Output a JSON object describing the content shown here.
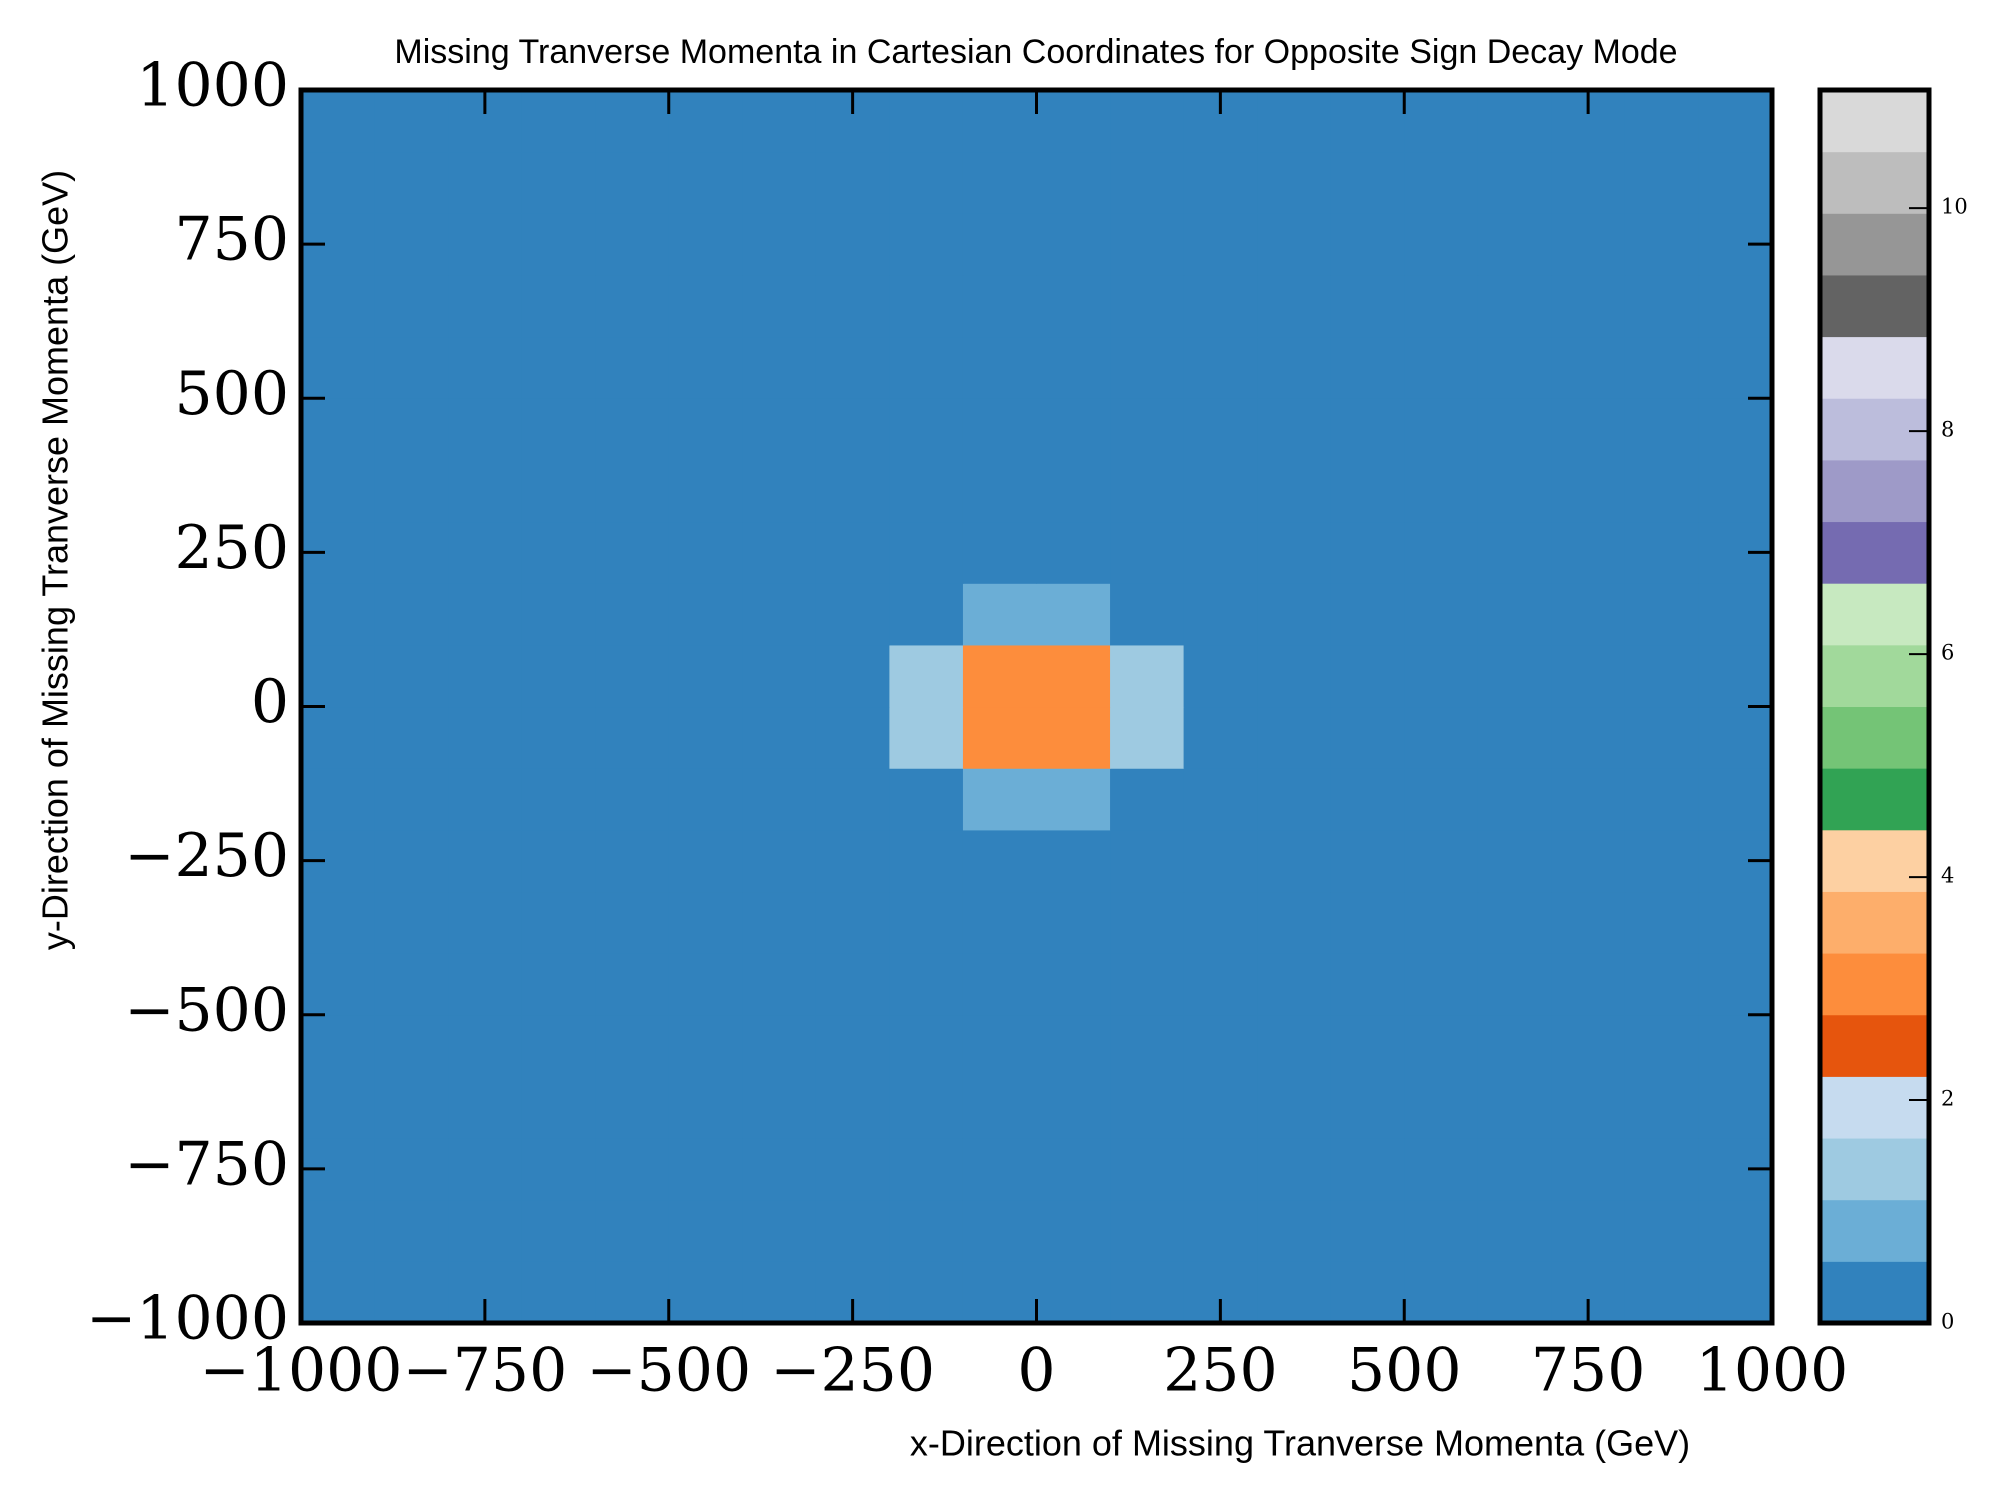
{
  "chart_data": {
    "type": "heatmap",
    "title": "Missing Tranverse Momenta in Cartesian Coordinates for Opposite Sign Decay Mode",
    "x_label": "x-Direction of Missing Tranverse Momenta (GeV)",
    "y_label": "y-Direction of Missing Tranverse Momenta (GeV)",
    "x_bins": [
      -1000,
      -900,
      -800,
      -700,
      -600,
      -500,
      -400,
      -300,
      -200,
      -100,
      0,
      100,
      200,
      300,
      400,
      500,
      600,
      700,
      800,
      900,
      1000
    ],
    "y_bins": [
      -1000,
      -900,
      -800,
      -700,
      -600,
      -500,
      -400,
      -300,
      -200,
      -100,
      0,
      100,
      200,
      300,
      400,
      500,
      600,
      700,
      800,
      900,
      1000
    ],
    "values": [
      [
        0,
        0,
        0,
        0,
        0,
        0,
        0,
        0,
        0,
        0,
        0,
        0,
        0,
        0,
        0,
        0,
        0,
        0,
        0,
        0
      ],
      [
        0,
        0,
        0,
        0,
        0,
        0,
        0,
        0,
        0,
        0,
        0,
        0,
        0,
        0,
        0,
        0,
        0,
        0,
        0,
        0
      ],
      [
        0,
        0,
        0,
        0,
        0,
        0,
        0,
        0,
        0,
        0,
        0,
        0,
        0,
        0,
        0,
        0,
        0,
        0,
        0,
        0
      ],
      [
        0,
        0,
        0,
        0,
        0,
        0,
        0,
        0,
        0,
        0,
        0,
        0,
        0,
        0,
        0,
        0,
        0,
        0,
        0,
        0
      ],
      [
        0,
        0,
        0,
        0,
        0,
        0,
        0,
        0,
        0,
        0,
        0,
        0,
        0,
        0,
        0,
        0,
        0,
        0,
        0,
        0
      ],
      [
        0,
        0,
        0,
        0,
        0,
        0,
        0,
        0,
        0,
        0,
        0,
        0,
        0,
        0,
        0,
        0,
        0,
        0,
        0,
        0
      ],
      [
        0,
        0,
        0,
        0,
        0,
        0,
        0,
        0,
        0.05,
        0.05,
        0.05,
        0.05,
        0,
        0,
        0,
        0,
        0,
        0,
        0,
        0
      ],
      [
        0,
        0,
        0,
        0,
        0,
        0,
        0.05,
        0.1,
        0.2,
        0.2,
        0.2,
        0.2,
        0.1,
        0.05,
        0,
        0,
        0,
        0,
        0,
        0
      ],
      [
        0,
        0,
        0,
        0,
        0,
        0,
        0.05,
        0.1,
        0.5,
        1.1,
        1.1,
        0.5,
        0.1,
        0.05,
        0,
        0,
        0,
        0,
        0,
        0
      ],
      [
        0,
        0,
        0,
        0,
        0,
        0,
        0.1,
        0.2,
        1.2,
        2.8,
        2.8,
        1.2,
        0.2,
        0.1,
        0,
        0,
        0,
        0,
        0,
        0
      ],
      [
        0,
        0,
        0,
        0,
        0,
        0,
        0.1,
        0.2,
        1.2,
        2.8,
        2.8,
        1.2,
        0.2,
        0.1,
        0,
        0,
        0,
        0,
        0,
        0
      ],
      [
        0,
        0,
        0,
        0,
        0,
        0,
        0.05,
        0.1,
        0.5,
        1.1,
        1.1,
        0.5,
        0.1,
        0.05,
        0,
        0,
        0,
        0,
        0,
        0
      ],
      [
        0,
        0,
        0,
        0,
        0,
        0,
        0.05,
        0.1,
        0.2,
        0.2,
        0.2,
        0.2,
        0.1,
        0.05,
        0,
        0,
        0,
        0,
        0,
        0
      ],
      [
        0,
        0,
        0,
        0,
        0,
        0,
        0,
        0,
        0.05,
        0.05,
        0.05,
        0.05,
        0,
        0,
        0,
        0,
        0,
        0,
        0,
        0
      ],
      [
        0,
        0,
        0,
        0,
        0,
        0,
        0,
        0,
        0,
        0,
        0,
        0,
        0,
        0,
        0,
        0,
        0,
        0,
        0,
        0
      ],
      [
        0,
        0,
        0,
        0,
        0,
        0,
        0,
        0,
        0,
        0,
        0,
        0,
        0,
        0,
        0,
        0,
        0,
        0,
        0,
        0
      ],
      [
        0,
        0,
        0,
        0,
        0,
        0,
        0,
        0,
        0,
        0,
        0,
        0,
        0,
        0,
        0,
        0,
        0,
        0,
        0,
        0
      ],
      [
        0,
        0,
        0,
        0,
        0,
        0,
        0,
        0,
        0,
        0,
        0,
        0,
        0,
        0,
        0,
        0,
        0,
        0,
        0,
        0
      ],
      [
        0,
        0,
        0,
        0,
        0,
        0,
        0,
        0,
        0,
        0,
        0,
        0,
        0,
        0,
        0,
        0,
        0,
        0,
        0,
        0
      ],
      [
        0,
        0,
        0,
        0,
        0,
        0,
        0,
        0,
        0,
        0,
        0,
        0,
        0,
        0,
        0,
        0,
        0,
        0,
        0,
        0
      ]
    ],
    "xlim": [
      -1000,
      1000
    ],
    "ylim": [
      -1000,
      1000
    ],
    "xticks": [
      {
        "value": -1000,
        "label": "−1000"
      },
      {
        "value": -750,
        "label": "−750"
      },
      {
        "value": -500,
        "label": "−500"
      },
      {
        "value": -250,
        "label": "−250"
      },
      0,
      250,
      500,
      750,
      1000
    ],
    "yticks": [
      {
        "value": -1000,
        "label": "−1000"
      },
      {
        "value": -750,
        "label": "−750"
      },
      {
        "value": -500,
        "label": "−500"
      },
      {
        "value": -250,
        "label": "−250"
      },
      0,
      250,
      500,
      750,
      1000
    ],
    "colors": [
      "#3182bd",
      "#6baed6",
      "#9ecae1",
      "#c6dbef",
      "#e6550d",
      "#fd8d3c",
      "#fdae6b",
      "#fdd0a2",
      "#31a354",
      "#74c476",
      "#a1d99b",
      "#c7e9c0",
      "#756bb1",
      "#9e9ac8",
      "#bcbddc",
      "#dadaeb",
      "#636363",
      "#969696",
      "#bdbdbd",
      "#d9d9d9"
    ],
    "clim": [
      0,
      11.06
    ],
    "cticks": [
      0,
      2,
      4,
      6,
      8,
      10
    ]
  }
}
